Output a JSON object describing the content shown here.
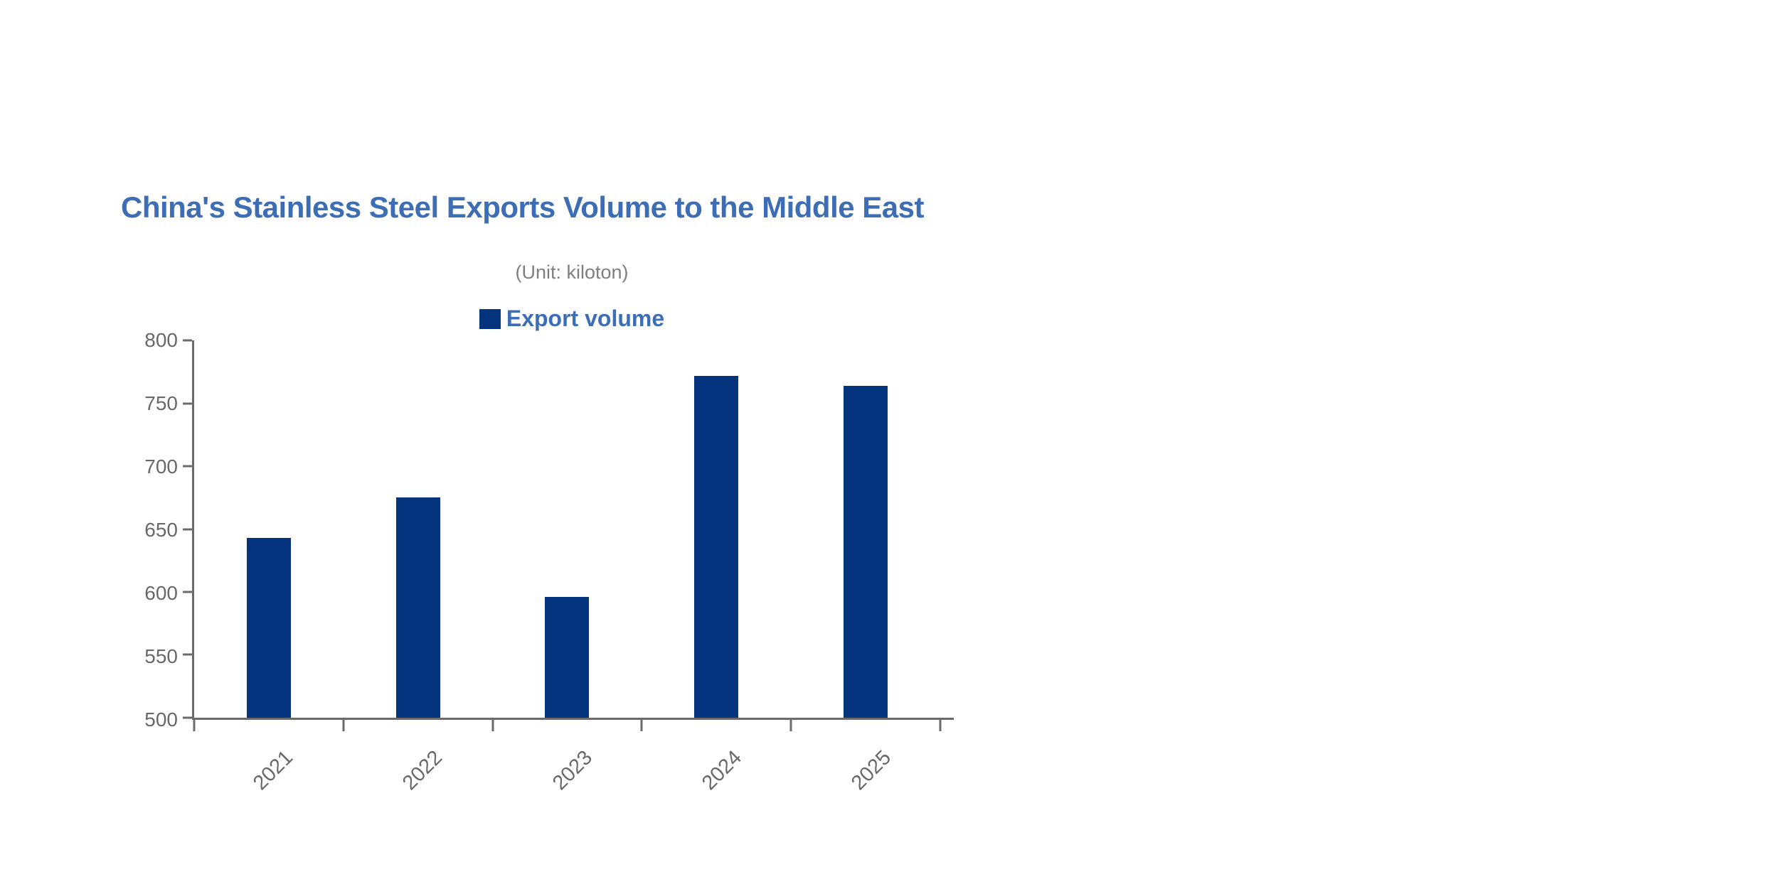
{
  "colors": {
    "title_blue": "#3d6eb5",
    "bar_navy": "#04347e",
    "subtitle_gray": "#7f7f7f",
    "axis_gray": "#696969"
  },
  "chart_data": {
    "type": "bar",
    "title": "China's Stainless Steel Exports Volume to the Middle East",
    "subtitle": "(Unit: kiloton)",
    "unit": "kiloton",
    "series_name": "Export volume",
    "categories": [
      "2021",
      "2022",
      "2023",
      "2024",
      "2025"
    ],
    "values": [
      643,
      675,
      596,
      772,
      764
    ],
    "ylim": [
      500,
      800
    ],
    "yticks": [
      "800",
      "750",
      "700",
      "650",
      "600",
      "550",
      "500"
    ],
    "xlabel": "",
    "ylabel": "",
    "grid": false,
    "legend_position": "top",
    "bar_color": "#04347e"
  }
}
